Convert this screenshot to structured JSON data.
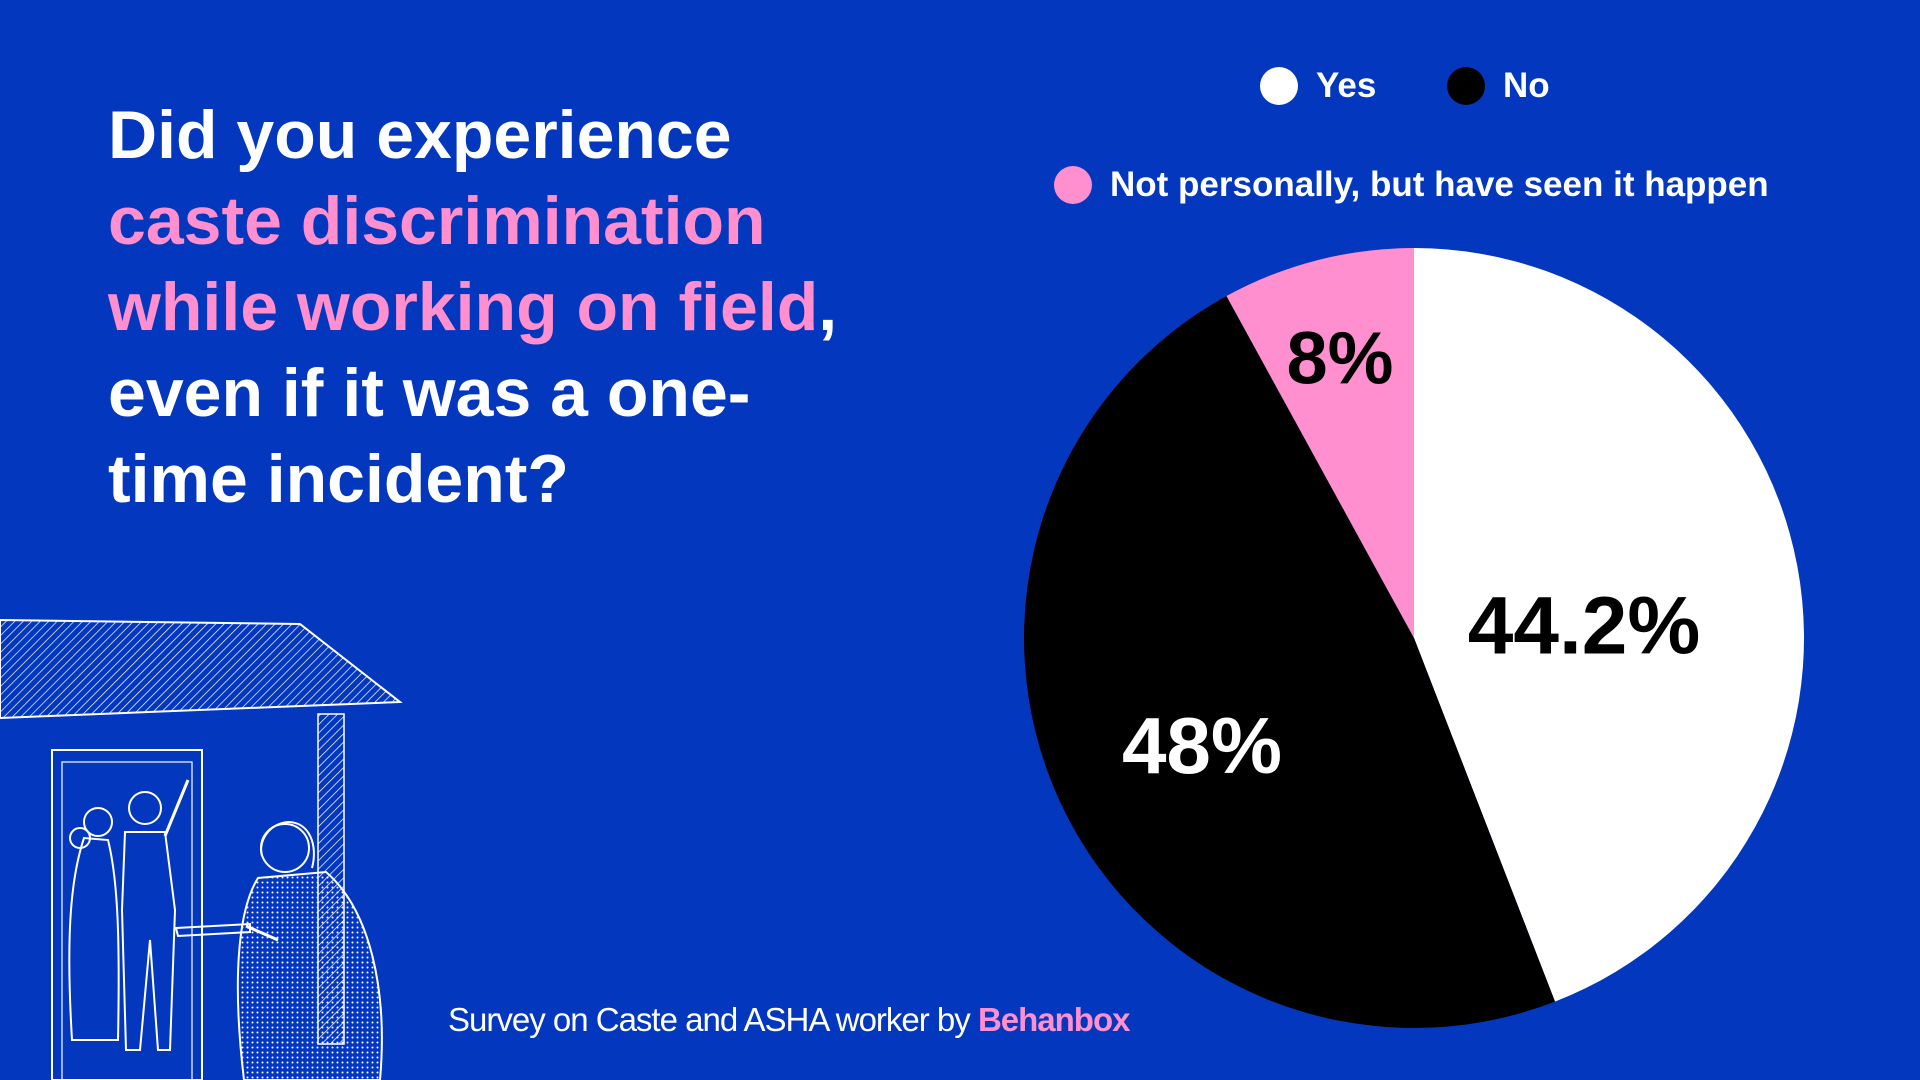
{
  "headline": {
    "part1": "Did you experience ",
    "highlight1": "caste discrimination while working on field",
    "part2": ", even if it was a one-time incident?"
  },
  "legend": [
    {
      "label": "Yes",
      "color": "#ffffff"
    },
    {
      "label": "No",
      "color": "#000000"
    },
    {
      "label": "Not personally, but have seen it happen",
      "color": "#ff8fcf"
    }
  ],
  "chart_data": {
    "type": "pie",
    "title": "Did you experience caste discrimination while working on field, even if it was a one-time incident?",
    "slices": [
      {
        "name": "Yes",
        "value": 44.2,
        "label": "44.2%",
        "color": "#ffffff",
        "label_color": "#000000"
      },
      {
        "name": "No",
        "value": 48,
        "label": "48%",
        "color": "#000000",
        "label_color": "#ffffff"
      },
      {
        "name": "Not personally, but have seen it happen",
        "value": 8,
        "label": "8%",
        "color": "#ff8fcf",
        "label_color": "#000000"
      }
    ]
  },
  "footer": {
    "text": "Survey on Caste and ASHA worker by ",
    "brand": "Behanbox"
  },
  "illustration": {
    "icon": "asha-worker-doorstep-illustration"
  },
  "colors": {
    "background": "#0338be",
    "accent": "#ff8fcf"
  }
}
